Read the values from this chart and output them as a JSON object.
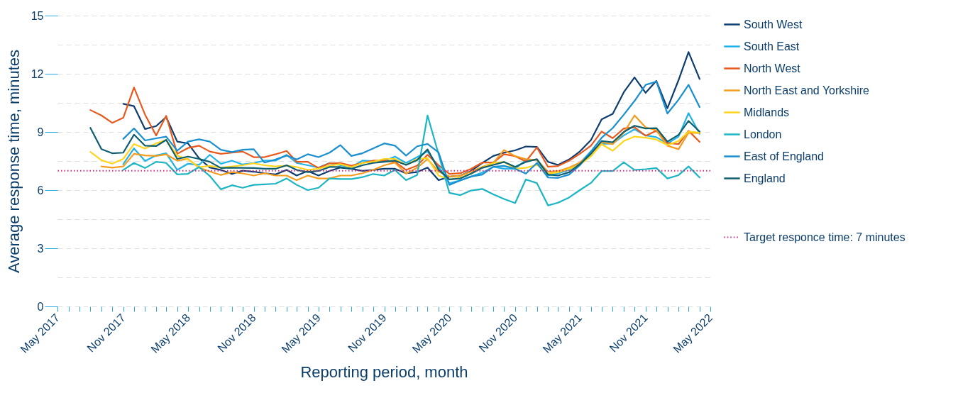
{
  "chart_data": {
    "type": "line",
    "xlabel": "Reporting period, month",
    "ylabel": "Average response time, minutes",
    "x": [
      "2017-08",
      "2017-09",
      "2017-10",
      "2017-11",
      "2017-12",
      "2018-01",
      "2018-02",
      "2018-03",
      "2018-04",
      "2018-05",
      "2018-06",
      "2018-07",
      "2018-08",
      "2018-09",
      "2018-10",
      "2018-11",
      "2018-12",
      "2019-01",
      "2019-02",
      "2019-03",
      "2019-04",
      "2019-05",
      "2019-06",
      "2019-07",
      "2019-08",
      "2019-09",
      "2019-10",
      "2019-11",
      "2019-12",
      "2020-01",
      "2020-02",
      "2020-03",
      "2020-04",
      "2020-05",
      "2020-06",
      "2020-07",
      "2020-08",
      "2020-09",
      "2020-10",
      "2020-11",
      "2020-12",
      "2021-01",
      "2021-02",
      "2021-03",
      "2021-04",
      "2021-05",
      "2021-06",
      "2021-07",
      "2021-08",
      "2021-09",
      "2021-10",
      "2021-11",
      "2021-12",
      "2022-01",
      "2022-02",
      "2022-03",
      "2022-04"
    ],
    "series": [
      {
        "name": "South West",
        "color": "#0d3d6e",
        "values": [
          null,
          null,
          null,
          10.45,
          10.33,
          9.15,
          9.3,
          9.77,
          8.5,
          8.41,
          7.64,
          7.16,
          7.04,
          6.83,
          7.0,
          6.95,
          6.87,
          6.81,
          7.04,
          6.75,
          6.99,
          6.75,
          6.99,
          7.16,
          7.1,
          6.99,
          7.04,
          7.1,
          7.1,
          6.87,
          6.93,
          7.16,
          6.51,
          6.69,
          6.75,
          6.99,
          7.4,
          7.76,
          7.93,
          8.05,
          8.25,
          8.23,
          7.46,
          7.3,
          7.58,
          7.99,
          8.58,
          9.65,
          9.93,
          11.05,
          11.81,
          11.02,
          11.63,
          10.22,
          11.67,
          13.12,
          11.73
        ]
      },
      {
        "name": "South East",
        "color": "#21b3e8",
        "values": [
          null,
          null,
          null,
          7.34,
          8.15,
          7.5,
          7.79,
          7.9,
          7.04,
          7.36,
          7.3,
          7.82,
          7.36,
          7.52,
          7.32,
          7.4,
          7.52,
          7.52,
          7.82,
          7.4,
          7.28,
          7.16,
          7.4,
          7.28,
          7.19,
          7.52,
          7.5,
          7.5,
          7.73,
          7.4,
          7.7,
          8.0,
          7.2,
          6.35,
          6.5,
          6.7,
          6.9,
          7.2,
          7.1,
          7.1,
          7.55,
          7.55,
          6.75,
          6.86,
          7.04,
          7.4,
          7.99,
          8.38,
          8.4,
          8.82,
          9.14,
          8.82,
          8.73,
          8.4,
          8.76,
          9.97,
          8.9
        ]
      },
      {
        "name": "North West",
        "color": "#e8591e",
        "values": [
          10.13,
          9.85,
          9.47,
          9.73,
          11.29,
          9.89,
          8.82,
          9.83,
          7.87,
          8.17,
          8.29,
          7.99,
          7.87,
          7.93,
          7.99,
          7.7,
          7.7,
          7.85,
          8.02,
          7.46,
          7.46,
          7.14,
          7.38,
          7.4,
          7.26,
          7.4,
          7.52,
          7.52,
          7.46,
          7.04,
          7.26,
          7.82,
          7.28,
          6.84,
          6.87,
          7.1,
          7.42,
          7.42,
          7.85,
          7.75,
          7.48,
          8.2,
          7.2,
          7.24,
          7.52,
          7.87,
          8.29,
          9.02,
          8.68,
          9.18,
          9.24,
          8.8,
          9.06,
          8.44,
          8.37,
          9.06,
          8.49
        ]
      },
      {
        "name": "North East and Yorkshire",
        "color": "#f39c1e",
        "values": [
          null,
          7.22,
          7.16,
          7.22,
          7.87,
          7.79,
          7.76,
          7.84,
          7.52,
          7.61,
          7.16,
          6.96,
          6.78,
          6.93,
          6.86,
          6.75,
          6.87,
          6.75,
          6.75,
          6.51,
          6.75,
          6.6,
          6.6,
          6.75,
          6.75,
          6.87,
          7.04,
          7.28,
          7.42,
          6.85,
          7.15,
          7.6,
          6.95,
          6.7,
          6.75,
          6.95,
          7.2,
          7.4,
          8.07,
          7.75,
          7.6,
          7.55,
          6.95,
          6.98,
          7.16,
          7.42,
          7.87,
          8.47,
          8.37,
          8.96,
          9.85,
          9.24,
          9.08,
          8.29,
          8.11,
          8.96,
          8.94
        ]
      },
      {
        "name": "Midlands",
        "color": "#ffd51c",
        "values": [
          7.97,
          7.54,
          7.36,
          7.61,
          8.38,
          8.14,
          8.41,
          8.59,
          7.78,
          7.58,
          7.19,
          7.25,
          7.16,
          null,
          7.28,
          7.38,
          7.28,
          7.22,
          7.26,
          7.19,
          7.04,
          7.1,
          7.26,
          7.34,
          7.19,
          7.4,
          7.46,
          7.61,
          7.61,
          7.3,
          7.6,
          7.65,
          6.75,
          6.55,
          6.65,
          6.85,
          7.15,
          7.4,
          7.45,
          7.1,
          7.15,
          7.3,
          6.85,
          6.92,
          7.1,
          7.3,
          7.75,
          8.37,
          8.03,
          8.53,
          8.76,
          8.7,
          8.61,
          8.32,
          8.53,
          9.02,
          8.96
        ]
      },
      {
        "name": "London",
        "color": "#1bb5c4",
        "values": [
          null,
          null,
          null,
          7.04,
          7.4,
          7.14,
          7.46,
          7.4,
          6.81,
          6.84,
          7.19,
          6.73,
          6.04,
          6.25,
          6.12,
          6.27,
          6.3,
          6.33,
          6.6,
          6.27,
          6.0,
          6.12,
          6.6,
          6.57,
          6.57,
          6.67,
          6.83,
          6.75,
          7.04,
          6.51,
          6.78,
          9.85,
          7.85,
          5.86,
          5.74,
          5.98,
          6.06,
          5.78,
          5.54,
          5.33,
          6.55,
          6.36,
          5.21,
          5.35,
          5.62,
          6.0,
          6.37,
          6.98,
          6.98,
          7.43,
          7.04,
          7.08,
          7.14,
          6.6,
          6.77,
          7.22,
          6.65
        ]
      },
      {
        "name": "East of England",
        "color": "#1a8fd0",
        "values": [
          null,
          null,
          null,
          8.64,
          9.18,
          8.56,
          8.67,
          8.76,
          8.03,
          8.5,
          8.62,
          8.5,
          8.08,
          7.96,
          8.08,
          8.11,
          7.42,
          7.58,
          7.78,
          7.58,
          7.85,
          7.7,
          7.93,
          8.32,
          7.76,
          7.9,
          8.15,
          8.41,
          8.29,
          7.78,
          8.26,
          8.38,
          7.94,
          6.27,
          6.5,
          6.7,
          6.8,
          7.2,
          7.25,
          7.1,
          6.85,
          7.4,
          6.65,
          6.63,
          6.8,
          7.28,
          7.99,
          8.7,
          9.2,
          9.89,
          10.6,
          11.43,
          11.6,
          9.95,
          10.66,
          11.43,
          10.28
        ]
      },
      {
        "name": "England",
        "color": "#0e5e6e",
        "values": [
          9.21,
          8.11,
          7.9,
          7.93,
          8.86,
          8.29,
          8.27,
          8.59,
          7.61,
          7.73,
          7.61,
          7.46,
          7.14,
          7.16,
          7.15,
          7.14,
          7.1,
          7.1,
          7.28,
          7.04,
          6.93,
          6.99,
          7.19,
          7.19,
          7.1,
          7.28,
          7.4,
          7.46,
          7.52,
          7.3,
          7.55,
          8.1,
          7.05,
          6.55,
          6.6,
          6.85,
          7.15,
          7.3,
          7.45,
          7.2,
          7.45,
          7.6,
          6.8,
          6.75,
          6.92,
          7.34,
          7.87,
          8.53,
          8.47,
          9.0,
          9.32,
          9.18,
          9.2,
          8.5,
          8.85,
          9.57,
          9.02
        ]
      }
    ],
    "xlim": [
      "2017-05",
      "2022-05"
    ],
    "xticks": [
      {
        "value": "2017-05",
        "label": "May 2017"
      },
      {
        "value": "2017-06",
        "label": null
      },
      {
        "value": "2017-07",
        "label": null
      },
      {
        "value": "2017-08",
        "label": null
      },
      {
        "value": "2017-09",
        "label": null
      },
      {
        "value": "2017-10",
        "label": null
      },
      {
        "value": "2017-11",
        "label": "Nov 2017"
      },
      {
        "value": "2017-12",
        "label": null
      },
      {
        "value": "2018-01",
        "label": null
      },
      {
        "value": "2018-02",
        "label": null
      },
      {
        "value": "2018-03",
        "label": null
      },
      {
        "value": "2018-04",
        "label": null
      },
      {
        "value": "2018-05",
        "label": "May 2018"
      },
      {
        "value": "2018-06",
        "label": null
      },
      {
        "value": "2018-07",
        "label": null
      },
      {
        "value": "2018-08",
        "label": null
      },
      {
        "value": "2018-09",
        "label": null
      },
      {
        "value": "2018-10",
        "label": null
      },
      {
        "value": "2018-11",
        "label": "Nov 2018"
      },
      {
        "value": "2018-12",
        "label": null
      },
      {
        "value": "2019-01",
        "label": null
      },
      {
        "value": "2019-02",
        "label": null
      },
      {
        "value": "2019-03",
        "label": null
      },
      {
        "value": "2019-04",
        "label": null
      },
      {
        "value": "2019-05",
        "label": "May 2019"
      },
      {
        "value": "2019-06",
        "label": null
      },
      {
        "value": "2019-07",
        "label": null
      },
      {
        "value": "2019-08",
        "label": null
      },
      {
        "value": "2019-09",
        "label": null
      },
      {
        "value": "2019-10",
        "label": null
      },
      {
        "value": "2019-11",
        "label": "Nov 2019"
      },
      {
        "value": "2019-12",
        "label": null
      },
      {
        "value": "2020-01",
        "label": null
      },
      {
        "value": "2020-02",
        "label": null
      },
      {
        "value": "2020-03",
        "label": null
      },
      {
        "value": "2020-04",
        "label": null
      },
      {
        "value": "2020-05",
        "label": "May 2020"
      },
      {
        "value": "2020-06",
        "label": null
      },
      {
        "value": "2020-07",
        "label": null
      },
      {
        "value": "2020-08",
        "label": null
      },
      {
        "value": "2020-09",
        "label": null
      },
      {
        "value": "2020-10",
        "label": null
      },
      {
        "value": "2020-11",
        "label": "Nov 2020"
      },
      {
        "value": "2020-12",
        "label": null
      },
      {
        "value": "2021-01",
        "label": null
      },
      {
        "value": "2021-02",
        "label": null
      },
      {
        "value": "2021-03",
        "label": null
      },
      {
        "value": "2021-04",
        "label": null
      },
      {
        "value": "2021-05",
        "label": "May 2021"
      },
      {
        "value": "2021-06",
        "label": null
      },
      {
        "value": "2021-07",
        "label": null
      },
      {
        "value": "2021-08",
        "label": null
      },
      {
        "value": "2021-09",
        "label": null
      },
      {
        "value": "2021-10",
        "label": null
      },
      {
        "value": "2021-11",
        "label": "Nov 2021"
      },
      {
        "value": "2021-12",
        "label": null
      },
      {
        "value": "2022-01",
        "label": null
      },
      {
        "value": "2022-02",
        "label": null
      },
      {
        "value": "2022-03",
        "label": null
      },
      {
        "value": "2022-04",
        "label": null
      },
      {
        "value": "2022-05",
        "label": "May 2022"
      }
    ],
    "ylim": [
      0,
      15
    ],
    "yticks": [
      0,
      {
        "value": 1.5,
        "label": null
      },
      3,
      {
        "value": 4.5,
        "label": null
      },
      6,
      {
        "value": 7.5,
        "label": null
      },
      9,
      {
        "value": 10.5,
        "label": null
      },
      12,
      {
        "value": 13.5,
        "label": null
      },
      15
    ],
    "ref_lines": [
      {
        "axis": "y",
        "value": 7,
        "label": "Target responce time: 7 minutes",
        "color": "#d6257e",
        "line_style": "dotted"
      }
    ],
    "grid": "y",
    "legend": "right",
    "marker": "none",
    "line_style": "solid"
  }
}
